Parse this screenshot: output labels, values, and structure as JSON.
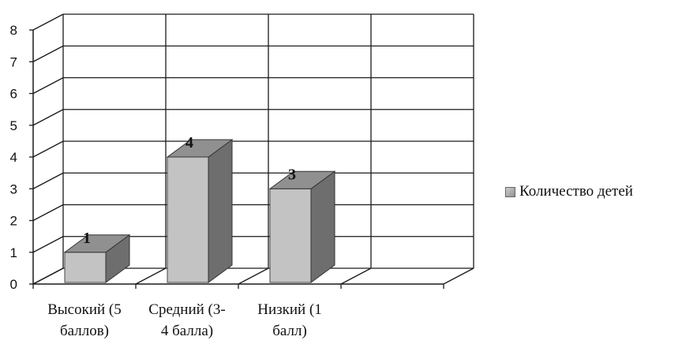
{
  "chart_data": {
    "type": "bar",
    "categories": [
      "Высокий (5 баллов)",
      "Средний (3-4 балла)",
      "Низкий (1 балл)"
    ],
    "category_label_lines": [
      [
        "Высокий (5",
        "баллов)"
      ],
      [
        "Средний (3-",
        "4 балла)"
      ],
      [
        "Низкий (1",
        "балл)"
      ]
    ],
    "series": [
      {
        "name": "Количество детей",
        "values": [
          1,
          4,
          3
        ]
      }
    ],
    "data_labels": [
      "1",
      "4",
      "3"
    ],
    "y_ticks": [
      "0",
      "1",
      "2",
      "3",
      "4",
      "5",
      "6",
      "7",
      "8"
    ],
    "ylim": [
      0,
      8
    ],
    "grid": true,
    "legend_position": "right",
    "style": "3d",
    "colors": {
      "bar_front": "#c3c3c3",
      "bar_side": "#6e6e6e",
      "bar_top": "#909090",
      "grid": "#1a1a1a",
      "text": "#111111"
    }
  }
}
